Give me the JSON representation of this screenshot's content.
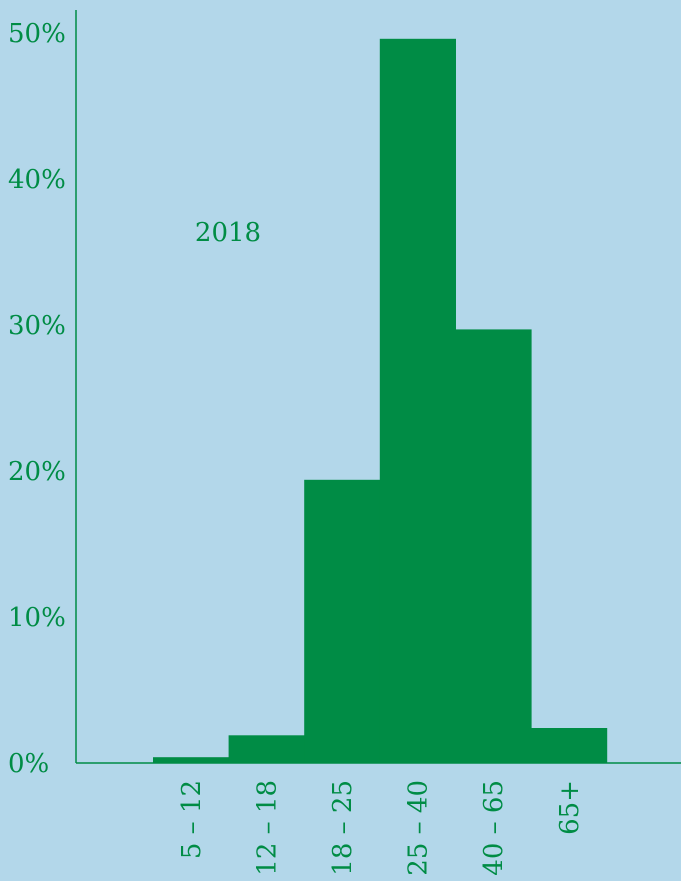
{
  "chart_data": {
    "type": "bar",
    "categories": [
      "5 – 12",
      "12 – 18",
      "18 – 25",
      "25 – 40",
      "40 – 65",
      "65+"
    ],
    "values": [
      0.4,
      1.9,
      19.4,
      49.6,
      29.7,
      2.4
    ],
    "ylim": [
      0,
      50
    ],
    "yticks": [
      "0%",
      "10%",
      "20%",
      "30%",
      "40%",
      "50%"
    ],
    "annotation": "2018",
    "grid": false,
    "colors": {
      "bar": "#008c45",
      "axis": "#008c45",
      "text": "#008c45",
      "background": "#b3d7ea"
    }
  }
}
